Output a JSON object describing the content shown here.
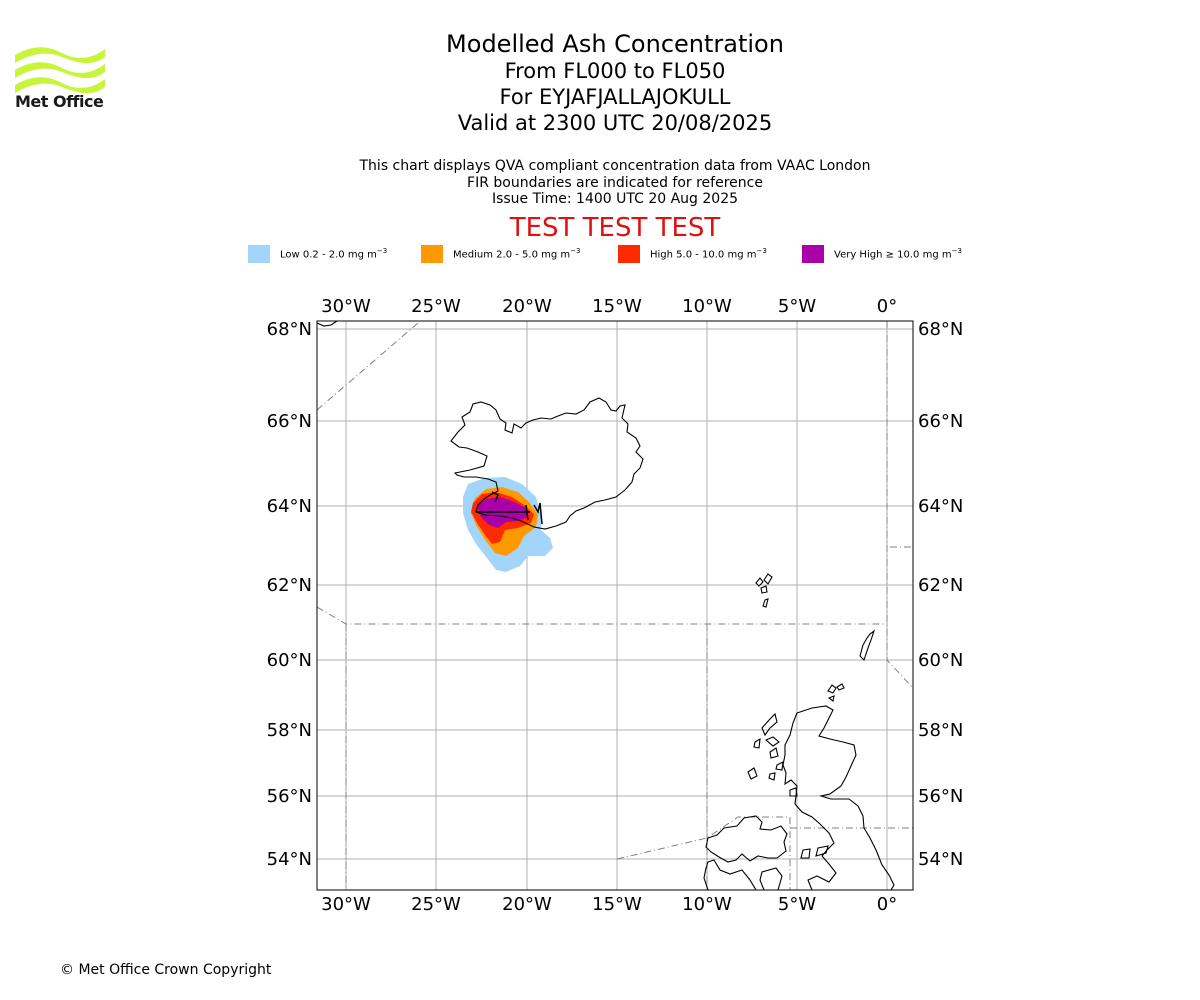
{
  "logo": {
    "text": "Met Office",
    "color": "#c8f53a"
  },
  "header": {
    "title": "Modelled Ash Concentration",
    "level_range": "From FL000 to FL050",
    "volcano": "For EYJAFJALLAJOKULL",
    "valid_time": "Valid at 2300 UTC 20/08/2025",
    "description_1": "This chart displays QVA compliant concentration data from VAAC London",
    "description_2": "FIR boundaries are indicated for reference",
    "issue_time": "Issue Time: 1400 UTC 20 Aug 2025",
    "test_banner": "TEST TEST TEST"
  },
  "legend": [
    {
      "label": "Low 0.2 - 2.0 mg m",
      "color": "#a3d4fa"
    },
    {
      "label": "Medium 2.0 - 5.0 mg m",
      "color": "#ff9900"
    },
    {
      "label": "High 5.0 - 10.0 mg m",
      "color": "#ff2a00"
    },
    {
      "label": "Very High  ≥  10.0 mg m",
      "color": "#aa00aa"
    }
  ],
  "legend_unit_exponent": "−3",
  "map": {
    "lon_ticks": [
      "30°W",
      "25°W",
      "20°W",
      "15°W",
      "10°W",
      "5°W",
      "0°"
    ],
    "lat_ticks": [
      "68°N",
      "66°N",
      "64°N",
      "62°N",
      "60°N",
      "58°N",
      "56°N",
      "54°N"
    ],
    "extent": {
      "lon_min": -31.6,
      "lon_max": 1.3,
      "lat_min": 53.3,
      "lat_max": 68.2
    }
  },
  "footer": {
    "copyright": "© Met Office Crown Copyright"
  }
}
